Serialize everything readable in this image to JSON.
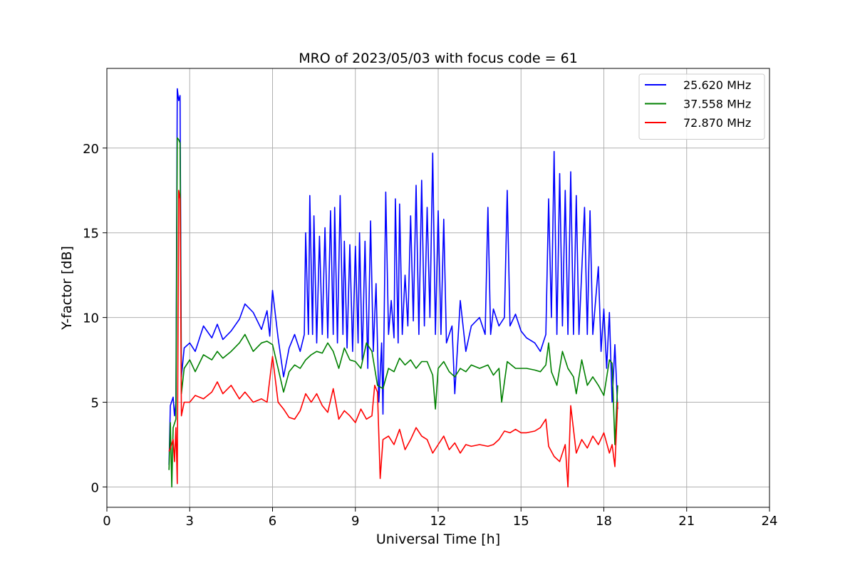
{
  "chart_data": {
    "type": "line",
    "title": "MRO of 2023/05/03 with focus code = 61",
    "xlabel": "Universal Time [h]",
    "ylabel": "Y-factor [dB]",
    "xlim": [
      0,
      24
    ],
    "ylim": [
      -1.2,
      24.7
    ],
    "xticks": [
      0,
      3,
      6,
      9,
      12,
      15,
      18,
      21,
      24
    ],
    "yticks": [
      0,
      5,
      10,
      15,
      20
    ],
    "grid": true,
    "legend_position": "top-right",
    "series": [
      {
        "name": "25.620 MHz",
        "color": "#0000ff",
        "points": [
          [
            2.25,
            1.3
          ],
          [
            2.3,
            4.8
          ],
          [
            2.4,
            5.3
          ],
          [
            2.45,
            4.2
          ],
          [
            2.5,
            5.0
          ],
          [
            2.55,
            23.5
          ],
          [
            2.6,
            22.8
          ],
          [
            2.65,
            23.1
          ],
          [
            2.7,
            6.5
          ],
          [
            2.8,
            8.2
          ],
          [
            3.0,
            8.5
          ],
          [
            3.2,
            8.0
          ],
          [
            3.5,
            9.5
          ],
          [
            3.8,
            8.8
          ],
          [
            4.0,
            9.6
          ],
          [
            4.2,
            8.7
          ],
          [
            4.5,
            9.2
          ],
          [
            4.8,
            9.9
          ],
          [
            5.0,
            10.8
          ],
          [
            5.3,
            10.3
          ],
          [
            5.6,
            9.3
          ],
          [
            5.8,
            10.4
          ],
          [
            5.9,
            8.9
          ],
          [
            6.0,
            11.6
          ],
          [
            6.2,
            8.8
          ],
          [
            6.4,
            6.5
          ],
          [
            6.6,
            8.2
          ],
          [
            6.8,
            9.0
          ],
          [
            7.0,
            8.0
          ],
          [
            7.15,
            9.0
          ],
          [
            7.2,
            15.0
          ],
          [
            7.3,
            9.0
          ],
          [
            7.35,
            17.2
          ],
          [
            7.45,
            9.0
          ],
          [
            7.5,
            16.0
          ],
          [
            7.6,
            8.5
          ],
          [
            7.7,
            14.8
          ],
          [
            7.8,
            9.0
          ],
          [
            7.9,
            15.3
          ],
          [
            8.0,
            8.8
          ],
          [
            8.1,
            16.3
          ],
          [
            8.2,
            9.0
          ],
          [
            8.25,
            16.5
          ],
          [
            8.35,
            8.5
          ],
          [
            8.45,
            17.2
          ],
          [
            8.55,
            9.0
          ],
          [
            8.6,
            14.5
          ],
          [
            8.7,
            8.2
          ],
          [
            8.8,
            14.3
          ],
          [
            8.9,
            8.0
          ],
          [
            9.0,
            14.2
          ],
          [
            9.1,
            8.5
          ],
          [
            9.15,
            15.0
          ],
          [
            9.25,
            7.5
          ],
          [
            9.35,
            14.5
          ],
          [
            9.45,
            7.0
          ],
          [
            9.55,
            15.7
          ],
          [
            9.65,
            8.0
          ],
          [
            9.75,
            12.0
          ],
          [
            9.85,
            5.0
          ],
          [
            9.95,
            8.5
          ],
          [
            10.0,
            4.3
          ],
          [
            10.1,
            17.4
          ],
          [
            10.2,
            9.0
          ],
          [
            10.3,
            11.0
          ],
          [
            10.4,
            8.8
          ],
          [
            10.45,
            17.0
          ],
          [
            10.55,
            8.5
          ],
          [
            10.6,
            16.7
          ],
          [
            10.7,
            9.0
          ],
          [
            10.8,
            12.5
          ],
          [
            10.9,
            9.5
          ],
          [
            11.0,
            16.0
          ],
          [
            11.1,
            9.8
          ],
          [
            11.2,
            17.8
          ],
          [
            11.3,
            9.0
          ],
          [
            11.4,
            18.1
          ],
          [
            11.5,
            9.5
          ],
          [
            11.6,
            16.5
          ],
          [
            11.7,
            10.0
          ],
          [
            11.8,
            19.7
          ],
          [
            11.9,
            9.0
          ],
          [
            12.0,
            16.3
          ],
          [
            12.1,
            9.0
          ],
          [
            12.2,
            15.8
          ],
          [
            12.3,
            8.5
          ],
          [
            12.5,
            9.5
          ],
          [
            12.6,
            5.5
          ],
          [
            12.8,
            11.0
          ],
          [
            13.0,
            8.0
          ],
          [
            13.2,
            9.5
          ],
          [
            13.5,
            10.0
          ],
          [
            13.7,
            9.0
          ],
          [
            13.8,
            16.5
          ],
          [
            13.9,
            9.0
          ],
          [
            14.0,
            10.5
          ],
          [
            14.2,
            9.5
          ],
          [
            14.4,
            10.0
          ],
          [
            14.5,
            17.5
          ],
          [
            14.6,
            9.5
          ],
          [
            14.8,
            10.2
          ],
          [
            15.0,
            9.2
          ],
          [
            15.2,
            8.8
          ],
          [
            15.5,
            8.5
          ],
          [
            15.7,
            8.0
          ],
          [
            15.9,
            9.0
          ],
          [
            16.0,
            17.0
          ],
          [
            16.1,
            10.0
          ],
          [
            16.2,
            19.8
          ],
          [
            16.3,
            9.0
          ],
          [
            16.4,
            18.5
          ],
          [
            16.5,
            9.5
          ],
          [
            16.6,
            17.5
          ],
          [
            16.7,
            9.0
          ],
          [
            16.8,
            18.6
          ],
          [
            16.9,
            9.0
          ],
          [
            17.0,
            17.2
          ],
          [
            17.1,
            9.0
          ],
          [
            17.3,
            16.5
          ],
          [
            17.4,
            9.0
          ],
          [
            17.5,
            16.3
          ],
          [
            17.6,
            9.0
          ],
          [
            17.8,
            13.0
          ],
          [
            17.9,
            8.0
          ],
          [
            18.0,
            10.5
          ],
          [
            18.1,
            7.0
          ],
          [
            18.2,
            10.3
          ],
          [
            18.3,
            5.0
          ],
          [
            18.4,
            8.4
          ],
          [
            18.5,
            4.6
          ]
        ]
      },
      {
        "name": "37.558 MHz",
        "color": "#008000",
        "points": [
          [
            2.25,
            1.0
          ],
          [
            2.3,
            3.8
          ],
          [
            2.35,
            0.0
          ],
          [
            2.4,
            3.5
          ],
          [
            2.5,
            4.0
          ],
          [
            2.55,
            20.6
          ],
          [
            2.6,
            20.5
          ],
          [
            2.65,
            20.3
          ],
          [
            2.7,
            5.5
          ],
          [
            2.8,
            7.0
          ],
          [
            3.0,
            7.5
          ],
          [
            3.2,
            6.8
          ],
          [
            3.5,
            7.8
          ],
          [
            3.8,
            7.5
          ],
          [
            4.0,
            8.0
          ],
          [
            4.2,
            7.6
          ],
          [
            4.5,
            8.0
          ],
          [
            4.8,
            8.5
          ],
          [
            5.0,
            9.0
          ],
          [
            5.3,
            8.0
          ],
          [
            5.6,
            8.5
          ],
          [
            5.8,
            8.6
          ],
          [
            6.0,
            8.4
          ],
          [
            6.2,
            7.0
          ],
          [
            6.4,
            5.6
          ],
          [
            6.6,
            6.8
          ],
          [
            6.8,
            7.2
          ],
          [
            7.0,
            7.0
          ],
          [
            7.2,
            7.5
          ],
          [
            7.4,
            7.8
          ],
          [
            7.6,
            8.0
          ],
          [
            7.8,
            7.9
          ],
          [
            8.0,
            8.5
          ],
          [
            8.2,
            8.0
          ],
          [
            8.4,
            7.0
          ],
          [
            8.6,
            8.2
          ],
          [
            8.8,
            7.5
          ],
          [
            9.0,
            7.4
          ],
          [
            9.2,
            7.0
          ],
          [
            9.4,
            8.5
          ],
          [
            9.6,
            8.0
          ],
          [
            9.8,
            6.0
          ],
          [
            10.0,
            5.8
          ],
          [
            10.2,
            7.0
          ],
          [
            10.4,
            6.8
          ],
          [
            10.6,
            7.6
          ],
          [
            10.8,
            7.2
          ],
          [
            11.0,
            7.5
          ],
          [
            11.2,
            7.0
          ],
          [
            11.4,
            7.4
          ],
          [
            11.6,
            7.4
          ],
          [
            11.8,
            6.6
          ],
          [
            11.9,
            4.6
          ],
          [
            12.0,
            7.0
          ],
          [
            12.2,
            7.4
          ],
          [
            12.4,
            6.8
          ],
          [
            12.6,
            6.5
          ],
          [
            12.8,
            7.0
          ],
          [
            13.0,
            6.8
          ],
          [
            13.2,
            7.2
          ],
          [
            13.5,
            7.0
          ],
          [
            13.8,
            7.2
          ],
          [
            14.0,
            6.6
          ],
          [
            14.2,
            7.0
          ],
          [
            14.3,
            5.0
          ],
          [
            14.5,
            7.4
          ],
          [
            14.8,
            7.0
          ],
          [
            15.0,
            7.0
          ],
          [
            15.2,
            7.0
          ],
          [
            15.5,
            6.9
          ],
          [
            15.7,
            6.8
          ],
          [
            15.9,
            7.2
          ],
          [
            16.0,
            8.5
          ],
          [
            16.1,
            6.8
          ],
          [
            16.3,
            6.0
          ],
          [
            16.5,
            8.0
          ],
          [
            16.7,
            7.0
          ],
          [
            16.9,
            6.5
          ],
          [
            17.0,
            5.5
          ],
          [
            17.2,
            7.5
          ],
          [
            17.4,
            6.0
          ],
          [
            17.6,
            6.5
          ],
          [
            17.8,
            6.0
          ],
          [
            18.0,
            5.4
          ],
          [
            18.2,
            7.5
          ],
          [
            18.3,
            7.3
          ],
          [
            18.4,
            2.5
          ],
          [
            18.5,
            6.0
          ]
        ]
      },
      {
        "name": "72.870 MHz",
        "color": "#ff0000",
        "points": [
          [
            2.25,
            2.1
          ],
          [
            2.3,
            2.3
          ],
          [
            2.4,
            2.8
          ],
          [
            2.45,
            1.5
          ],
          [
            2.5,
            3.5
          ],
          [
            2.55,
            0.2
          ],
          [
            2.6,
            17.5
          ],
          [
            2.65,
            17.0
          ],
          [
            2.7,
            4.2
          ],
          [
            2.8,
            5.0
          ],
          [
            3.0,
            5.0
          ],
          [
            3.2,
            5.4
          ],
          [
            3.5,
            5.2
          ],
          [
            3.8,
            5.6
          ],
          [
            4.0,
            6.2
          ],
          [
            4.2,
            5.5
          ],
          [
            4.5,
            6.0
          ],
          [
            4.8,
            5.2
          ],
          [
            5.0,
            5.6
          ],
          [
            5.3,
            5.0
          ],
          [
            5.6,
            5.2
          ],
          [
            5.8,
            5.0
          ],
          [
            6.0,
            7.7
          ],
          [
            6.2,
            5.0
          ],
          [
            6.4,
            4.6
          ],
          [
            6.6,
            4.1
          ],
          [
            6.8,
            4.0
          ],
          [
            7.0,
            4.5
          ],
          [
            7.2,
            5.5
          ],
          [
            7.4,
            5.0
          ],
          [
            7.6,
            5.5
          ],
          [
            7.8,
            4.8
          ],
          [
            8.0,
            4.4
          ],
          [
            8.2,
            5.8
          ],
          [
            8.4,
            4.0
          ],
          [
            8.6,
            4.5
          ],
          [
            8.8,
            4.2
          ],
          [
            9.0,
            3.8
          ],
          [
            9.2,
            4.6
          ],
          [
            9.4,
            4.0
          ],
          [
            9.6,
            4.2
          ],
          [
            9.7,
            6.0
          ],
          [
            9.8,
            5.6
          ],
          [
            9.9,
            0.5
          ],
          [
            10.0,
            2.8
          ],
          [
            10.2,
            3.0
          ],
          [
            10.4,
            2.5
          ],
          [
            10.6,
            3.4
          ],
          [
            10.8,
            2.2
          ],
          [
            11.0,
            2.8
          ],
          [
            11.2,
            3.5
          ],
          [
            11.4,
            3.0
          ],
          [
            11.6,
            2.8
          ],
          [
            11.8,
            2.0
          ],
          [
            12.0,
            2.5
          ],
          [
            12.2,
            3.0
          ],
          [
            12.4,
            2.2
          ],
          [
            12.6,
            2.6
          ],
          [
            12.8,
            2.0
          ],
          [
            13.0,
            2.5
          ],
          [
            13.2,
            2.4
          ],
          [
            13.5,
            2.5
          ],
          [
            13.8,
            2.4
          ],
          [
            14.0,
            2.5
          ],
          [
            14.2,
            2.8
          ],
          [
            14.4,
            3.3
          ],
          [
            14.6,
            3.2
          ],
          [
            14.8,
            3.4
          ],
          [
            15.0,
            3.2
          ],
          [
            15.2,
            3.2
          ],
          [
            15.5,
            3.3
          ],
          [
            15.7,
            3.5
          ],
          [
            15.9,
            4.0
          ],
          [
            16.0,
            2.4
          ],
          [
            16.2,
            1.8
          ],
          [
            16.4,
            1.5
          ],
          [
            16.6,
            2.5
          ],
          [
            16.7,
            0.0
          ],
          [
            16.8,
            4.8
          ],
          [
            17.0,
            2.0
          ],
          [
            17.2,
            2.8
          ],
          [
            17.4,
            2.3
          ],
          [
            17.6,
            3.0
          ],
          [
            17.8,
            2.5
          ],
          [
            18.0,
            3.2
          ],
          [
            18.2,
            2.0
          ],
          [
            18.3,
            2.5
          ],
          [
            18.4,
            1.2
          ],
          [
            18.5,
            5.0
          ]
        ]
      }
    ]
  }
}
